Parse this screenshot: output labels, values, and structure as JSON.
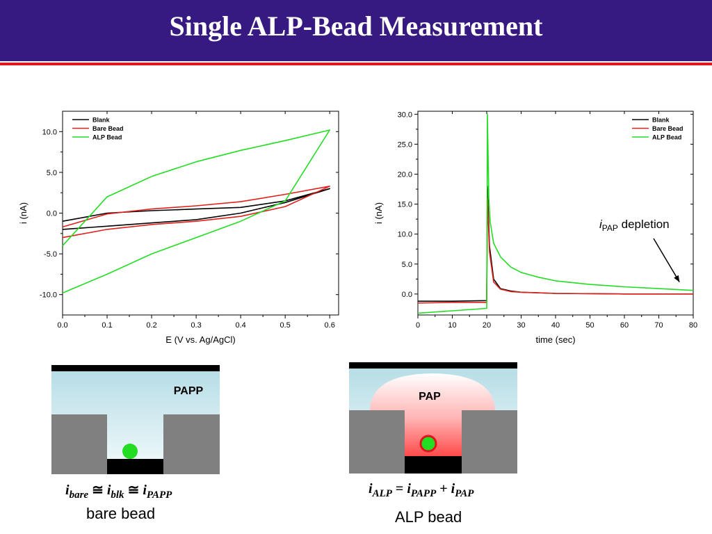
{
  "slide": {
    "title": "Single ALP-Bead Measurement"
  },
  "colors": {
    "header": "#361a82",
    "rule": "#e0141c",
    "blank": "#000000",
    "bare": "#e0201c",
    "alp": "#22dd22"
  },
  "chart_data": [
    {
      "type": "line",
      "xlabel": "E (V vs. Ag/AgCl)",
      "ylabel": "i (nA)",
      "xlim": [
        0.0,
        0.62
      ],
      "ylim": [
        -12.5,
        12.5
      ],
      "xticks": [
        "0.0",
        "0.1",
        "0.2",
        "0.3",
        "0.4",
        "0.5",
        "0.6"
      ],
      "yticks": [
        "10.0",
        "5.0",
        "0.0",
        "-5.0",
        "-10.0"
      ],
      "legend_position": "top-left",
      "series": [
        {
          "name": "Blank",
          "x": [
            0.0,
            0.1,
            0.2,
            0.3,
            0.4,
            0.5,
            0.6,
            0.5,
            0.4,
            0.3,
            0.2,
            0.1,
            0.0
          ],
          "y": [
            -1.0,
            0.0,
            0.3,
            0.5,
            0.7,
            1.5,
            3.0,
            1.3,
            0.0,
            -0.8,
            -1.2,
            -1.6,
            -2.0
          ]
        },
        {
          "name": "Bare Bead",
          "x": [
            0.0,
            0.1,
            0.2,
            0.3,
            0.4,
            0.5,
            0.6,
            0.5,
            0.4,
            0.3,
            0.2,
            0.1,
            0.0
          ],
          "y": [
            -1.7,
            -0.1,
            0.5,
            0.9,
            1.4,
            2.3,
            3.3,
            0.8,
            -0.4,
            -1.0,
            -1.4,
            -2.0,
            -3.0
          ]
        },
        {
          "name": "ALP Bead",
          "x": [
            0.0,
            0.1,
            0.2,
            0.3,
            0.4,
            0.5,
            0.6,
            0.5,
            0.4,
            0.3,
            0.2,
            0.1,
            0.0
          ],
          "y": [
            -4.0,
            2.0,
            4.5,
            6.3,
            7.7,
            8.9,
            10.2,
            1.5,
            -1.0,
            -3.0,
            -5.0,
            -7.5,
            -9.8
          ]
        }
      ]
    },
    {
      "type": "line",
      "xlabel": "time (sec)",
      "ylabel": "i (nA)",
      "xlim": [
        0,
        80
      ],
      "ylim": [
        -3.5,
        30.5
      ],
      "xticks": [
        "0",
        "10",
        "20",
        "30",
        "40",
        "50",
        "60",
        "70",
        "80"
      ],
      "yticks": [
        "30.0",
        "25.0",
        "20.0",
        "15.0",
        "10.0",
        "5.0",
        "0.0"
      ],
      "legend_position": "top-right",
      "annotation": {
        "symbol": "i",
        "subscript": "PAP",
        "text": "depletion",
        "arrow_to": [
          76,
          2.0
        ]
      },
      "series": [
        {
          "name": "Blank",
          "x": [
            0,
            10,
            20,
            20.2,
            20.8,
            22,
            24,
            27,
            30,
            40,
            60,
            80
          ],
          "y": [
            -1.2,
            -1.2,
            -1.1,
            18.0,
            8.0,
            2.5,
            0.9,
            0.5,
            0.3,
            0.1,
            0.0,
            0.0
          ]
        },
        {
          "name": "Bare Bead",
          "x": [
            0,
            10,
            20,
            20.2,
            20.8,
            22,
            24,
            27,
            30,
            40,
            60,
            80
          ],
          "y": [
            -1.5,
            -1.4,
            -1.4,
            16.0,
            7.0,
            2.0,
            0.8,
            0.4,
            0.3,
            0.1,
            0.0,
            0.0
          ]
        },
        {
          "name": "ALP Bead",
          "x": [
            0,
            10,
            20,
            20.2,
            20.6,
            21,
            22,
            24,
            27,
            30,
            35,
            40,
            50,
            60,
            70,
            80
          ],
          "y": [
            -3.2,
            -2.8,
            -2.4,
            30.0,
            16.0,
            12.0,
            8.5,
            6.2,
            4.5,
            3.6,
            2.8,
            2.2,
            1.6,
            1.2,
            0.9,
            0.6
          ]
        }
      ]
    }
  ],
  "diagrams": {
    "bare": {
      "label": "PAPP",
      "caption": "bare bead"
    },
    "alp": {
      "label": "PAP",
      "caption": "ALP bead"
    }
  },
  "equations": {
    "bare": {
      "t1": "i",
      "s1": "bare",
      "t2": "i",
      "s2": "blk",
      "t3": "i",
      "s3": "PAPP",
      "op": "≅"
    },
    "alp": {
      "t1": "i",
      "s1": "ALP",
      "t2": "i",
      "s2": "PAPP",
      "t3": "i",
      "s3": "PAP",
      "eq": "=",
      "plus": "+"
    }
  }
}
